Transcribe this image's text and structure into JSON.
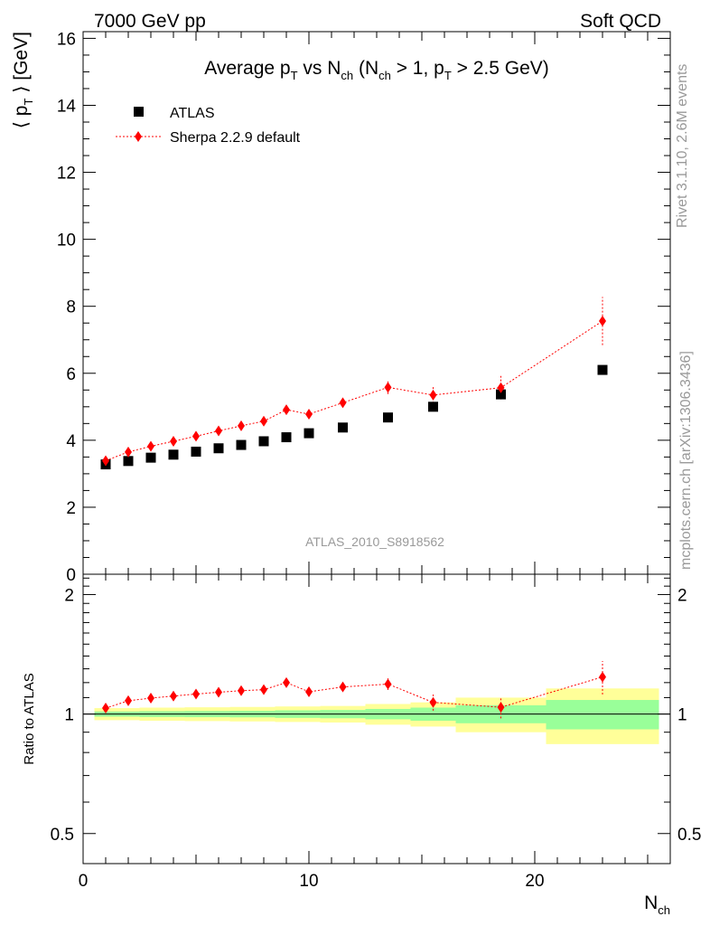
{
  "header": {
    "left": "7000 GeV pp",
    "right": "Soft QCD"
  },
  "side_labels": {
    "rivet": "Rivet 3.1.10,  2.6M events",
    "mcplots": "mcplots.cern.ch [arXiv:1306.3436]"
  },
  "chart_data": [
    {
      "type": "scatter",
      "title_parts": [
        "Average p",
        "T",
        " vs N",
        "ch",
        " (N",
        "ch",
        " > 1, p",
        "T",
        " > 2.5 GeV)"
      ],
      "ylabel_parts": [
        "⟨ p",
        "T",
        " ⟩  [GeV]"
      ],
      "analysis_label": "ATLAS_2010_S8918562",
      "xlim": [
        0,
        26
      ],
      "ylim": [
        0,
        16.2
      ],
      "yticks": [
        0,
        2,
        4,
        6,
        8,
        10,
        12,
        14,
        16
      ],
      "legend_position": "top-left",
      "series": [
        {
          "name": "ATLAS",
          "marker": "square",
          "color": "#000000",
          "x": [
            1,
            2,
            3,
            4,
            5,
            6,
            7,
            8,
            9,
            10,
            11.5,
            13.5,
            15.5,
            18.5,
            23
          ],
          "y": [
            3.28,
            3.38,
            3.48,
            3.57,
            3.66,
            3.76,
            3.86,
            3.97,
            4.09,
            4.21,
            4.38,
            4.68,
            5.0,
            5.37,
            6.1
          ]
        },
        {
          "name": "Sherpa 2.2.9 default",
          "marker": "diamond",
          "color": "#ff0000",
          "line": "dotted",
          "x": [
            1,
            2,
            3,
            4,
            5,
            6,
            7,
            8,
            9,
            10,
            11.5,
            13.5,
            15.5,
            18.5,
            23
          ],
          "y": [
            3.39,
            3.65,
            3.82,
            3.97,
            4.12,
            4.28,
            4.43,
            4.57,
            4.91,
            4.78,
            5.12,
            5.58,
            5.35,
            5.57,
            7.56
          ],
          "yerr": [
            0.05,
            0.05,
            0.05,
            0.05,
            0.05,
            0.05,
            0.05,
            0.06,
            0.08,
            0.08,
            0.1,
            0.2,
            0.25,
            0.35,
            0.72
          ]
        }
      ]
    },
    {
      "type": "scatter",
      "ylabel": "Ratio to ATLAS",
      "xlabel_parts": [
        "N",
        "ch"
      ],
      "xlim": [
        0,
        26
      ],
      "ylim_log": [
        0.42,
        2.25
      ],
      "yticks": [
        0.5,
        1,
        2
      ],
      "xticks": [
        0,
        10,
        20
      ],
      "bands": {
        "outer_color": "#ffff99",
        "inner_color": "#99ff99",
        "bins": [
          {
            "x0": 0.5,
            "x1": 1.5,
            "outer": [
              0.965,
              1.035
            ],
            "inner": [
              0.985,
              1.015
            ]
          },
          {
            "x0": 1.5,
            "x1": 2.5,
            "outer": [
              0.965,
              1.035
            ],
            "inner": [
              0.985,
              1.015
            ]
          },
          {
            "x0": 2.5,
            "x1": 3.5,
            "outer": [
              0.962,
              1.038
            ],
            "inner": [
              0.983,
              1.017
            ]
          },
          {
            "x0": 3.5,
            "x1": 4.5,
            "outer": [
              0.962,
              1.038
            ],
            "inner": [
              0.983,
              1.017
            ]
          },
          {
            "x0": 4.5,
            "x1": 5.5,
            "outer": [
              0.96,
              1.04
            ],
            "inner": [
              0.982,
              1.018
            ]
          },
          {
            "x0": 5.5,
            "x1": 6.5,
            "outer": [
              0.96,
              1.04
            ],
            "inner": [
              0.982,
              1.018
            ]
          },
          {
            "x0": 6.5,
            "x1": 7.5,
            "outer": [
              0.958,
              1.042
            ],
            "inner": [
              0.981,
              1.019
            ]
          },
          {
            "x0": 7.5,
            "x1": 8.5,
            "outer": [
              0.958,
              1.042
            ],
            "inner": [
              0.981,
              1.019
            ]
          },
          {
            "x0": 8.5,
            "x1": 9.5,
            "outer": [
              0.955,
              1.045
            ],
            "inner": [
              0.978,
              1.022
            ]
          },
          {
            "x0": 9.5,
            "x1": 10.5,
            "outer": [
              0.955,
              1.045
            ],
            "inner": [
              0.978,
              1.022
            ]
          },
          {
            "x0": 10.5,
            "x1": 12.5,
            "outer": [
              0.952,
              1.048
            ],
            "inner": [
              0.976,
              1.024
            ]
          },
          {
            "x0": 12.5,
            "x1": 14.5,
            "outer": [
              0.94,
              1.06
            ],
            "inner": [
              0.97,
              1.03
            ]
          },
          {
            "x0": 14.5,
            "x1": 16.5,
            "outer": [
              0.93,
              1.07
            ],
            "inner": [
              0.962,
              1.038
            ]
          },
          {
            "x0": 16.5,
            "x1": 20.5,
            "outer": [
              0.9,
              1.1
            ],
            "inner": [
              0.948,
              1.052
            ]
          },
          {
            "x0": 20.5,
            "x1": 25.5,
            "outer": [
              0.84,
              1.16
            ],
            "inner": [
              0.915,
              1.085
            ]
          }
        ]
      },
      "series": [
        {
          "name": "Sherpa 2.2.9 default",
          "marker": "diamond",
          "color": "#ff0000",
          "line": "dotted",
          "x": [
            1,
            2,
            3,
            4,
            5,
            6,
            7,
            8,
            9,
            10,
            11.5,
            13.5,
            15.5,
            18.5,
            23
          ],
          "y": [
            1.035,
            1.08,
            1.097,
            1.11,
            1.123,
            1.135,
            1.145,
            1.152,
            1.2,
            1.138,
            1.17,
            1.19,
            1.07,
            1.04,
            1.24
          ],
          "yerr": [
            0.015,
            0.015,
            0.015,
            0.015,
            0.015,
            0.015,
            0.015,
            0.015,
            0.02,
            0.02,
            0.022,
            0.04,
            0.05,
            0.065,
            0.12
          ]
        }
      ]
    }
  ]
}
